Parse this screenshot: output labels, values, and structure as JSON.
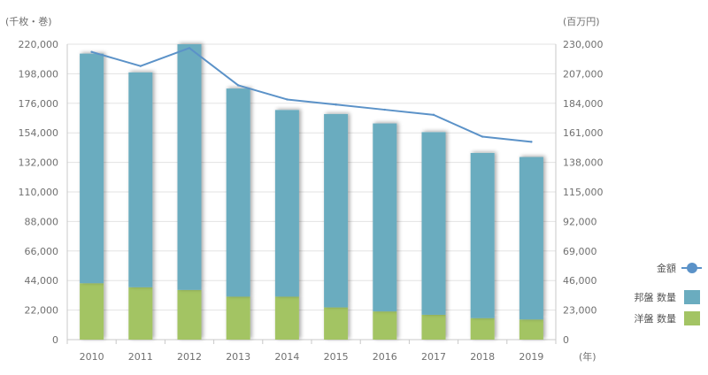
{
  "chart_data": {
    "type": "bar",
    "stacked": true,
    "categories": [
      "2010",
      "2011",
      "2012",
      "2013",
      "2014",
      "2015",
      "2016",
      "2017",
      "2018",
      "2019"
    ],
    "x_unit": "(年)",
    "y_left": {
      "unit": "(千枚・巻)",
      "ylim": [
        0,
        220000
      ],
      "ticks": [
        0,
        22000,
        44000,
        66000,
        88000,
        110000,
        132000,
        154000,
        176000,
        198000,
        220000
      ],
      "tick_labels": [
        "0",
        "22,000",
        "44,000",
        "66,000",
        "88,000",
        "110,000",
        "132,000",
        "154,000",
        "176,000",
        "198,000",
        "220,000"
      ]
    },
    "y_right": {
      "unit": "(百万円)",
      "ylim": [
        0,
        230000
      ],
      "ticks": [
        0,
        23000,
        46000,
        69000,
        92000,
        115000,
        138000,
        161000,
        184000,
        207000,
        230000
      ],
      "tick_labels": [
        "0",
        "23,000",
        "46,000",
        "69,000",
        "92,000",
        "115,000",
        "138,000",
        "161,000",
        "184,000",
        "207,000",
        "230,000"
      ]
    },
    "series": [
      {
        "name": "洋盤 数量",
        "kind": "bar",
        "axis": "left",
        "color": "#a3c464",
        "values": [
          42000,
          39000,
          37000,
          32000,
          32000,
          24000,
          21000,
          18500,
          16000,
          15000
        ]
      },
      {
        "name": "邦盤 数量",
        "kind": "bar",
        "axis": "left",
        "color": "#6aacbf",
        "values": [
          171000,
          160000,
          183000,
          155000,
          139000,
          144000,
          140000,
          136000,
          123000,
          121000
        ]
      },
      {
        "name": "金額",
        "kind": "line",
        "axis": "right",
        "color": "#5b92c8",
        "values": [
          224000,
          213000,
          227000,
          198000,
          187000,
          183000,
          179000,
          175000,
          158000,
          154000
        ]
      }
    ],
    "legend": {
      "position": "right",
      "entries": [
        {
          "label": "金額",
          "series": "金額"
        },
        {
          "label": "邦盤 数量",
          "series": "邦盤 数量"
        },
        {
          "label": "洋盤 数量",
          "series": "洋盤 数量"
        }
      ]
    },
    "grid": true
  }
}
